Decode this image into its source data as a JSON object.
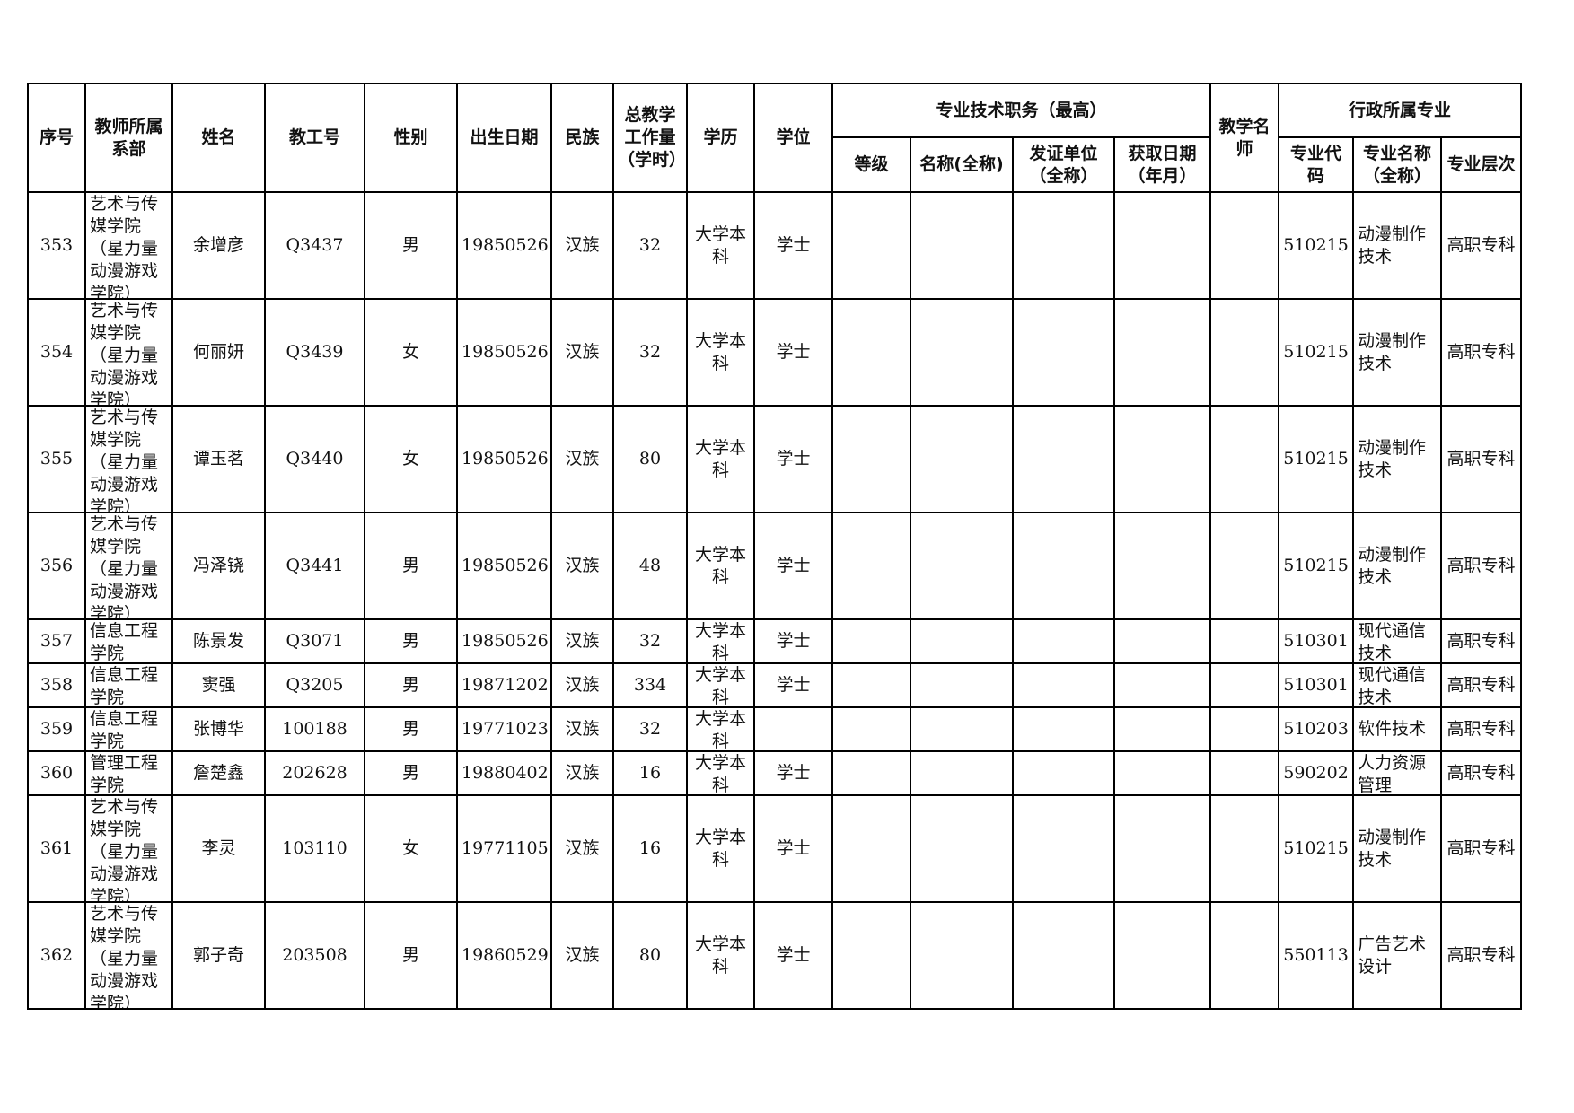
{
  "headers": {
    "seq": "序号",
    "dept": "教师所属系部",
    "name": "姓名",
    "staff_id": "教工号",
    "gender": "性别",
    "birth": "出生日期",
    "ethnicity": "民族",
    "workload": "总教学工作量（学时）",
    "education": "学历",
    "degree": "学位",
    "title_group": "专业技术职务（最高）",
    "title_level": "等级",
    "title_name": "名称(全称)",
    "title_issuer": "发证单位（全称）",
    "title_date": "获取日期（年月）",
    "famous_teacher": "教学名师",
    "major_group": "行政所属专业",
    "major_code": "专业代码",
    "major_name": "专业名称（全称）",
    "major_level": "专业层次"
  },
  "rows": [
    {
      "seq": "353",
      "dept": "艺术与传媒学院（星力量动漫游戏学院）",
      "name": "余增彦",
      "staff_id": "Q3437",
      "gender": "男",
      "birth": "19850526",
      "ethnicity": "汉族",
      "workload": "32",
      "education": "大学本科",
      "degree": "学士",
      "title_level": "",
      "title_name": "",
      "title_issuer": "",
      "title_date": "",
      "famous_teacher": "",
      "major_code": "510215",
      "major_name": "动漫制作技术",
      "major_level": "高职专科"
    },
    {
      "seq": "354",
      "dept": "艺术与传媒学院（星力量动漫游戏学院）",
      "name": "何丽妍",
      "staff_id": "Q3439",
      "gender": "女",
      "birth": "19850526",
      "ethnicity": "汉族",
      "workload": "32",
      "education": "大学本科",
      "degree": "学士",
      "title_level": "",
      "title_name": "",
      "title_issuer": "",
      "title_date": "",
      "famous_teacher": "",
      "major_code": "510215",
      "major_name": "动漫制作技术",
      "major_level": "高职专科"
    },
    {
      "seq": "355",
      "dept": "艺术与传媒学院（星力量动漫游戏学院）",
      "name": "谭玉茗",
      "staff_id": "Q3440",
      "gender": "女",
      "birth": "19850526",
      "ethnicity": "汉族",
      "workload": "80",
      "education": "大学本科",
      "degree": "学士",
      "title_level": "",
      "title_name": "",
      "title_issuer": "",
      "title_date": "",
      "famous_teacher": "",
      "major_code": "510215",
      "major_name": "动漫制作技术",
      "major_level": "高职专科"
    },
    {
      "seq": "356",
      "dept": "艺术与传媒学院（星力量动漫游戏学院）",
      "name": "冯泽铙",
      "staff_id": "Q3441",
      "gender": "男",
      "birth": "19850526",
      "ethnicity": "汉族",
      "workload": "48",
      "education": "大学本科",
      "degree": "学士",
      "title_level": "",
      "title_name": "",
      "title_issuer": "",
      "title_date": "",
      "famous_teacher": "",
      "major_code": "510215",
      "major_name": "动漫制作技术",
      "major_level": "高职专科"
    },
    {
      "seq": "357",
      "dept": "信息工程学院",
      "name": "陈景发",
      "staff_id": "Q3071",
      "gender": "男",
      "birth": "19850526",
      "ethnicity": "汉族",
      "workload": "32",
      "education": "大学本科",
      "degree": "学士",
      "title_level": "",
      "title_name": "",
      "title_issuer": "",
      "title_date": "",
      "famous_teacher": "",
      "major_code": "510301",
      "major_name": "现代通信技术",
      "major_level": "高职专科"
    },
    {
      "seq": "358",
      "dept": "信息工程学院",
      "name": "窦强",
      "staff_id": "Q3205",
      "gender": "男",
      "birth": "19871202",
      "ethnicity": "汉族",
      "workload": "334",
      "education": "大学本科",
      "degree": "学士",
      "title_level": "",
      "title_name": "",
      "title_issuer": "",
      "title_date": "",
      "famous_teacher": "",
      "major_code": "510301",
      "major_name": "现代通信技术",
      "major_level": "高职专科"
    },
    {
      "seq": "359",
      "dept": "信息工程学院",
      "name": "张博华",
      "staff_id": "100188",
      "gender": "男",
      "birth": "19771023",
      "ethnicity": "汉族",
      "workload": "32",
      "education": "大学本科",
      "degree": "",
      "title_level": "",
      "title_name": "",
      "title_issuer": "",
      "title_date": "",
      "famous_teacher": "",
      "major_code": "510203",
      "major_name": "软件技术",
      "major_level": "高职专科"
    },
    {
      "seq": "360",
      "dept": "管理工程学院",
      "name": "詹楚鑫",
      "staff_id": "202628",
      "gender": "男",
      "birth": "19880402",
      "ethnicity": "汉族",
      "workload": "16",
      "education": "大学本科",
      "degree": "学士",
      "title_level": "",
      "title_name": "",
      "title_issuer": "",
      "title_date": "",
      "famous_teacher": "",
      "major_code": "590202",
      "major_name": "人力资源管理",
      "major_level": "高职专科"
    },
    {
      "seq": "361",
      "dept": "艺术与传媒学院（星力量动漫游戏学院）",
      "name": "李灵",
      "staff_id": "103110",
      "gender": "女",
      "birth": "19771105",
      "ethnicity": "汉族",
      "workload": "16",
      "education": "大学本科",
      "degree": "学士",
      "title_level": "",
      "title_name": "",
      "title_issuer": "",
      "title_date": "",
      "famous_teacher": "",
      "major_code": "510215",
      "major_name": "动漫制作技术",
      "major_level": "高职专科"
    },
    {
      "seq": "362",
      "dept": "艺术与传媒学院（星力量动漫游戏学院）",
      "name": "郭子奇",
      "staff_id": "203508",
      "gender": "男",
      "birth": "19860529",
      "ethnicity": "汉族",
      "workload": "80",
      "education": "大学本科",
      "degree": "学士",
      "title_level": "",
      "title_name": "",
      "title_issuer": "",
      "title_date": "",
      "famous_teacher": "",
      "major_code": "550113",
      "major_name": "广告艺术设计",
      "major_level": "高职专科"
    }
  ]
}
